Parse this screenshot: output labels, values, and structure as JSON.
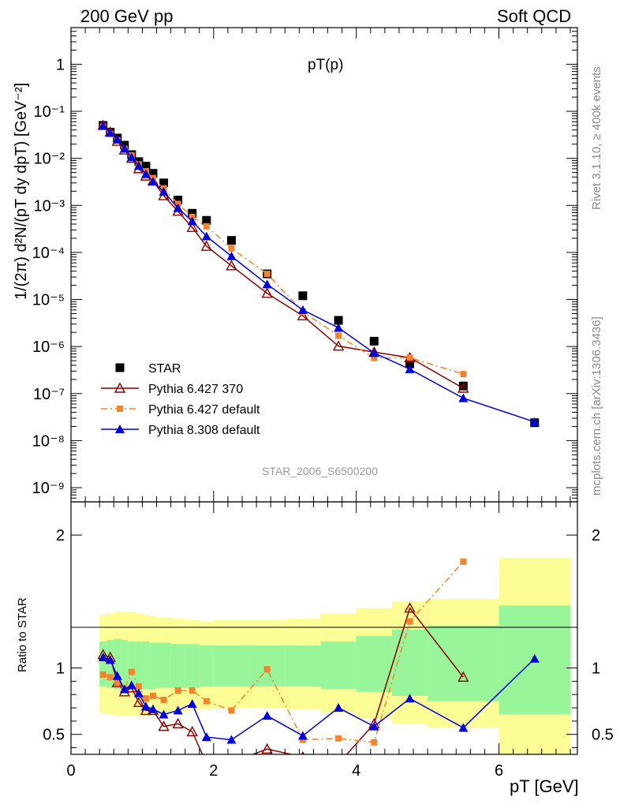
{
  "header": {
    "left": "200 GeV pp",
    "right": "Soft QCD"
  },
  "side": {
    "rivet": "Rivet 3.1.10, ≥ 400k events",
    "mcplots": "mcplots.cern.ch [arXiv:1306.3436]"
  },
  "chart_data": [
    {
      "type": "scatter",
      "title": "pT(p)",
      "watermark": "STAR_2006_S6500200",
      "ylabel": "1/(2π) d²N/(pT dy dpT) [GeV⁻²]",
      "yscale": "log",
      "xlim": [
        0,
        7.1
      ],
      "ylim": [
        5e-10,
        6
      ],
      "ytick_labels": [
        "10⁻⁹",
        "10⁻⁸",
        "10⁻⁷",
        "10⁻⁶",
        "10⁻⁵",
        "10⁻⁴",
        "10⁻³",
        "10⁻²",
        "10⁻¹",
        "1"
      ],
      "legend_position": "middle-left",
      "series": [
        {
          "name": "STAR",
          "color": "#000000",
          "marker": "square",
          "x": [
            0.45,
            0.55,
            0.65,
            0.75,
            0.85,
            0.95,
            1.05,
            1.15,
            1.3,
            1.5,
            1.7,
            1.9,
            2.25,
            2.75,
            3.25,
            3.75,
            4.25,
            4.75,
            5.5,
            6.5
          ],
          "y": [
            0.05,
            0.036,
            0.027,
            0.019,
            0.012,
            0.0085,
            0.0068,
            0.0048,
            0.003,
            0.0013,
            0.00068,
            0.00048,
            0.00018,
            3.5e-05,
            1.2e-05,
            3.6e-06,
            1.3e-06,
            4.3e-07,
            1.45e-07,
            2.4e-08
          ]
        },
        {
          "name": "Pythia 6.427 370",
          "color": "#8b0000",
          "marker": "open-triangle",
          "x": [
            0.45,
            0.55,
            0.65,
            0.75,
            0.85,
            0.95,
            1.05,
            1.15,
            1.3,
            1.5,
            1.7,
            1.9,
            2.25,
            2.75,
            3.25,
            3.75,
            4.25,
            4.75,
            5.5
          ],
          "y": [
            0.05,
            0.036,
            0.023,
            0.015,
            0.01,
            0.006,
            0.0042,
            0.0033,
            0.0016,
            0.00075,
            0.00034,
            0.000135,
            5.2e-05,
            1.35e-05,
            4.5e-06,
            1.02e-06,
            7.6e-07,
            5.8e-07,
            1.3e-07
          ]
        },
        {
          "name": "Pythia 6.427 default",
          "color": "#f5832b",
          "marker": "square",
          "x": [
            0.45,
            0.55,
            0.65,
            0.75,
            0.85,
            0.95,
            1.05,
            1.15,
            1.3,
            1.5,
            1.7,
            1.9,
            2.25,
            2.75,
            3.25,
            3.75,
            4.25,
            4.75,
            5.5
          ],
          "y": [
            0.047,
            0.033,
            0.024,
            0.016,
            0.0116,
            0.0074,
            0.0053,
            0.0038,
            0.0023,
            0.00107,
            0.00057,
            0.00036,
            0.000122,
            3.5e-05,
            5.5e-06,
            1.7e-06,
            5.7e-07,
            5.8e-07,
            2.6e-07
          ]
        },
        {
          "name": "Pythia 8.308 default",
          "color": "#0000dd",
          "marker": "triangle",
          "x": [
            0.45,
            0.55,
            0.65,
            0.75,
            0.85,
            0.95,
            1.05,
            1.15,
            1.3,
            1.5,
            1.7,
            1.9,
            2.25,
            2.75,
            3.25,
            3.75,
            4.25,
            4.75,
            5.5,
            6.5
          ],
          "y": [
            0.049,
            0.035,
            0.025,
            0.016,
            0.0105,
            0.0069,
            0.0046,
            0.0032,
            0.00195,
            0.00088,
            0.00046,
            0.00022,
            8.3e-05,
            2.1e-05,
            6e-06,
            2.5e-06,
            7.3e-07,
            3.3e-07,
            8e-08,
            2.5e-08
          ]
        }
      ]
    },
    {
      "type": "line",
      "ylabel": "Ratio to STAR",
      "xlabel": "pT [GeV]",
      "xlim": [
        0,
        7.1
      ],
      "ylim": [
        0.35,
        2.25
      ],
      "ytick_labels": [
        "0.5",
        "1",
        "2"
      ],
      "xtick_labels": [
        "0",
        "2",
        "4",
        "6"
      ],
      "bands": {
        "x_edges": [
          0.4,
          0.5,
          0.6,
          0.7,
          0.8,
          0.9,
          1.0,
          1.1,
          1.2,
          1.4,
          1.6,
          1.8,
          2.0,
          2.5,
          3.0,
          3.5,
          4.0,
          4.5,
          5.0,
          6.0,
          7.0
        ],
        "inner_low": [
          0.86,
          0.85,
          0.84,
          0.84,
          0.84,
          0.84,
          0.84,
          0.84,
          0.85,
          0.85,
          0.85,
          0.86,
          0.86,
          0.86,
          0.86,
          0.84,
          0.82,
          0.79,
          0.75,
          0.65
        ],
        "inner_high": [
          1.2,
          1.21,
          1.22,
          1.21,
          1.2,
          1.2,
          1.2,
          1.19,
          1.19,
          1.18,
          1.18,
          1.17,
          1.17,
          1.17,
          1.17,
          1.2,
          1.24,
          1.29,
          1.32,
          1.47
        ],
        "outer_low": [
          0.66,
          0.65,
          0.64,
          0.64,
          0.64,
          0.64,
          0.64,
          0.65,
          0.66,
          0.67,
          0.68,
          0.69,
          0.7,
          0.7,
          0.69,
          0.66,
          0.62,
          0.58,
          0.55,
          0.35
        ],
        "outer_high": [
          1.4,
          1.41,
          1.42,
          1.42,
          1.42,
          1.41,
          1.4,
          1.39,
          1.38,
          1.37,
          1.36,
          1.35,
          1.36,
          1.36,
          1.37,
          1.41,
          1.45,
          1.5,
          1.52,
          1.83
        ],
        "inner_color": "#99f599",
        "outer_color": "#fdfd96"
      },
      "series": [
        {
          "name": "Pythia 6.427 370",
          "color": "#8b0000",
          "x": [
            0.45,
            0.55,
            0.65,
            0.75,
            0.85,
            0.95,
            1.05,
            1.15,
            1.3,
            1.5,
            1.7,
            1.9,
            2.25,
            2.75,
            3.25,
            3.75,
            4.25,
            4.75,
            5.5
          ],
          "y": [
            1.1,
            1.08,
            0.89,
            0.82,
            0.85,
            0.74,
            0.68,
            0.68,
            0.56,
            0.58,
            0.52,
            0.28,
            0.29,
            0.39,
            0.33,
            0.28,
            0.58,
            1.45,
            0.93
          ]
        },
        {
          "name": "Pythia 6.427 default",
          "color": "#f5832b",
          "x": [
            0.45,
            0.55,
            0.65,
            0.75,
            0.85,
            0.95,
            1.05,
            1.15,
            1.3,
            1.5,
            1.7,
            1.9,
            2.25,
            2.75,
            3.25,
            3.75,
            4.25,
            4.75,
            5.5
          ],
          "y": [
            0.95,
            0.93,
            0.89,
            0.84,
            0.97,
            0.86,
            0.77,
            0.79,
            0.76,
            0.83,
            0.83,
            0.75,
            0.68,
            0.99,
            0.46,
            0.47,
            0.44,
            1.35,
            1.8
          ]
        },
        {
          "name": "Pythia 8.308 default",
          "color": "#0000dd",
          "x": [
            0.45,
            0.55,
            0.65,
            0.75,
            0.85,
            0.95,
            1.05,
            1.15,
            1.3,
            1.5,
            1.7,
            1.9,
            2.25,
            2.75,
            3.25,
            3.75,
            4.25,
            4.75,
            5.5,
            6.5
          ],
          "y": [
            1.08,
            1.06,
            0.94,
            0.84,
            0.87,
            0.81,
            0.71,
            0.69,
            0.65,
            0.68,
            0.73,
            0.48,
            0.46,
            0.64,
            0.49,
            0.7,
            0.56,
            0.77,
            0.55,
            1.07
          ]
        }
      ]
    }
  ]
}
